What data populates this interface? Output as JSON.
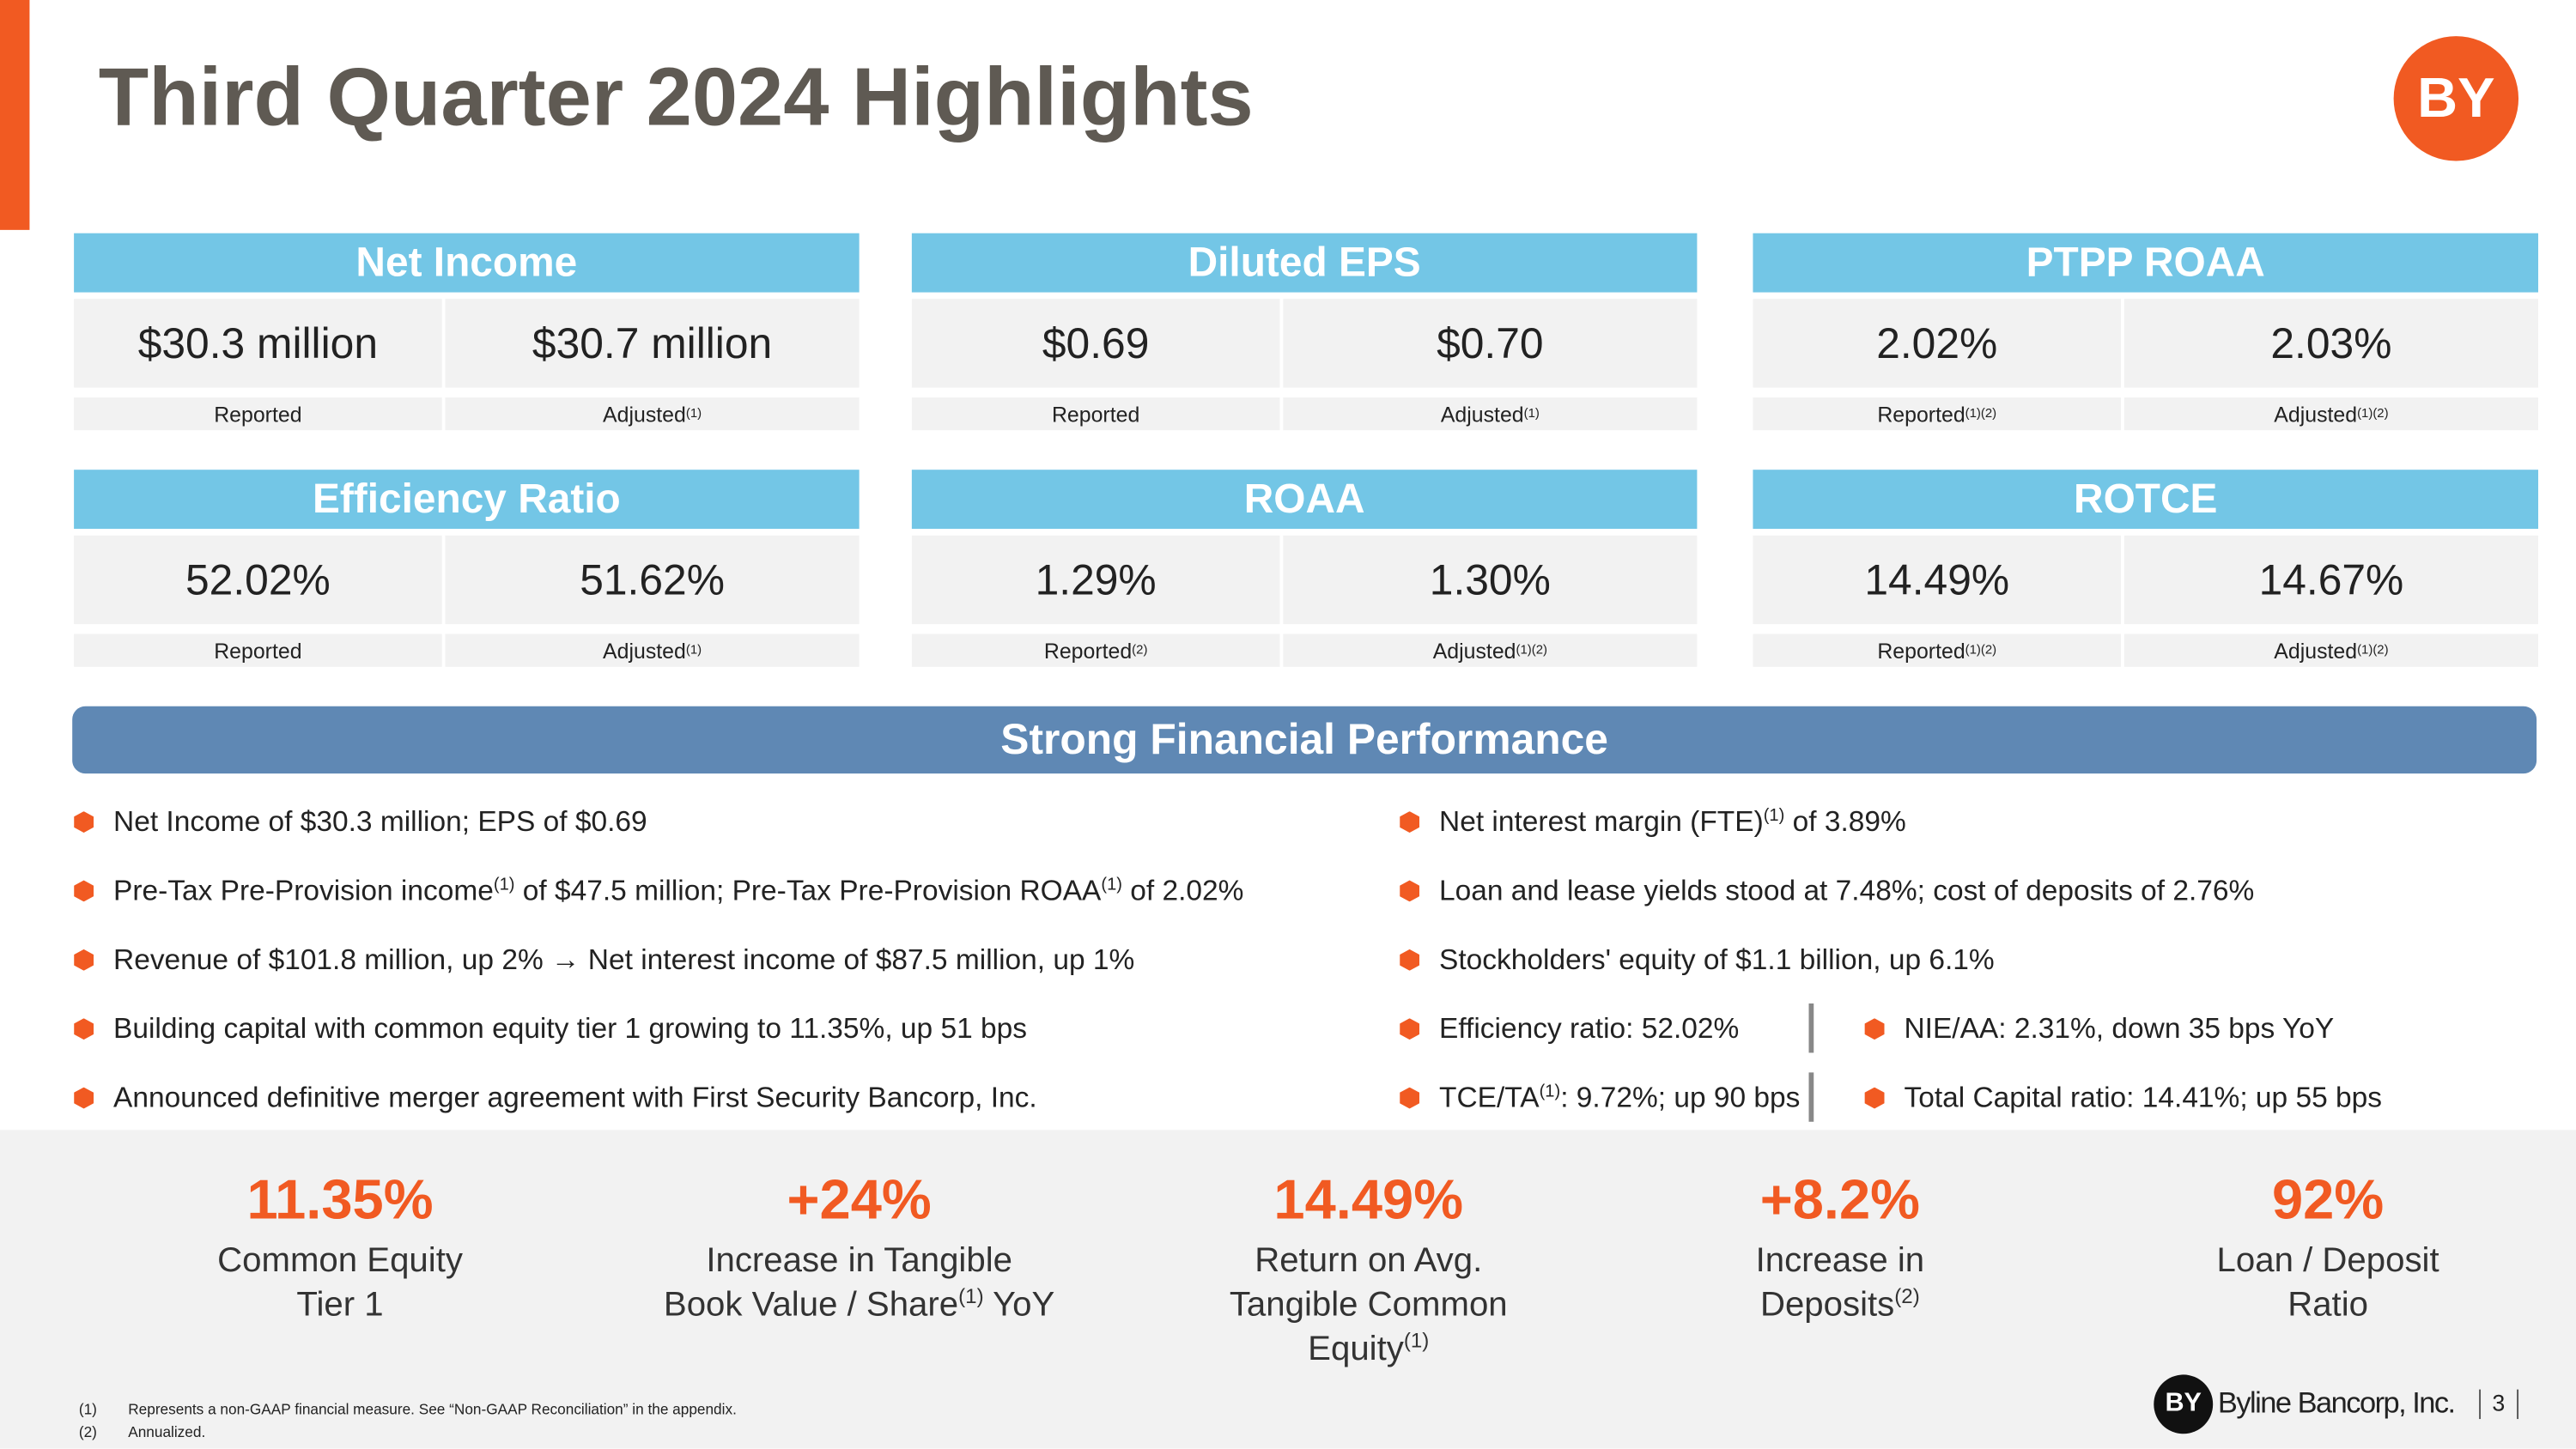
{
  "header": {
    "title": "Third Quarter 2024 Highlights",
    "logo": "BY"
  },
  "metrics": [
    {
      "title": "Net Income",
      "reported": "$30.3 million",
      "adjusted": "$30.7 million",
      "reported_label": [
        {
          "t": "Reported"
        }
      ],
      "adjusted_label": [
        {
          "t": "Adjusted"
        },
        {
          "sup": "(1)"
        }
      ]
    },
    {
      "title": "Diluted EPS",
      "reported": "$0.69",
      "adjusted": "$0.70",
      "reported_label": [
        {
          "t": "Reported"
        }
      ],
      "adjusted_label": [
        {
          "t": "Adjusted"
        },
        {
          "sup": "(1)"
        }
      ]
    },
    {
      "title": "PTPP ROAA",
      "reported": "2.02%",
      "adjusted": "2.03%",
      "reported_label": [
        {
          "t": "Reported"
        },
        {
          "sup": "(1)(2)"
        }
      ],
      "adjusted_label": [
        {
          "t": "Adjusted"
        },
        {
          "sup": "(1)(2)"
        }
      ]
    },
    {
      "title": "Efficiency Ratio",
      "reported": "52.02%",
      "adjusted": "51.62%",
      "reported_label": [
        {
          "t": "Reported"
        }
      ],
      "adjusted_label": [
        {
          "t": "Adjusted"
        },
        {
          "sup": "(1)"
        }
      ]
    },
    {
      "title": "ROAA",
      "reported": "1.29%",
      "adjusted": "1.30%",
      "reported_label": [
        {
          "t": "Reported"
        },
        {
          "sup": "(2)"
        }
      ],
      "adjusted_label": [
        {
          "t": "Adjusted"
        },
        {
          "sup": "(1)(2)"
        }
      ]
    },
    {
      "title": "ROTCE",
      "reported": "14.49%",
      "adjusted": "14.67%",
      "reported_label": [
        {
          "t": "Reported"
        },
        {
          "sup": "(1)(2)"
        }
      ],
      "adjusted_label": [
        {
          "t": "Adjusted"
        },
        {
          "sup": "(1)(2)"
        }
      ]
    }
  ],
  "banner": "Strong Financial Performance",
  "left_bullets": [
    [
      {
        "t": "Net Income of $30.3 million; EPS of $0.69"
      }
    ],
    [
      {
        "t": "Pre-Tax Pre-Provision income"
      },
      {
        "sup": "(1)"
      },
      {
        "t": " of $47.5 million; Pre-Tax Pre-Provision ROAA"
      },
      {
        "sup": "(1)"
      },
      {
        "t": " of 2.02%"
      }
    ],
    [
      {
        "t": "Revenue of $101.8 million, up 2% → Net interest income of $87.5 million, up 1%"
      }
    ],
    [
      {
        "t": "Building capital with common equity tier 1 growing to 11.35%, up 51 bps"
      }
    ],
    [
      {
        "t": "Announced definitive merger agreement with First Security Bancorp, Inc."
      }
    ]
  ],
  "right_rows": [
    [
      [
        {
          "t": "Net interest margin (FTE)"
        },
        {
          "sup": "(1)"
        },
        {
          "t": " of 3.89%"
        }
      ]
    ],
    [
      [
        {
          "t": "Loan and lease yields stood at 7.48%; cost of deposits of 2.76%"
        }
      ]
    ],
    [
      [
        {
          "t": "Stockholders' equity of $1.1 billion, up 6.1%"
        }
      ]
    ],
    [
      [
        {
          "t": "Efficiency ratio: 52.02%"
        }
      ],
      [
        {
          "t": "NIE/AA: 2.31%, down 35 bps YoY"
        }
      ]
    ],
    [
      [
        {
          "t": "TCE/TA"
        },
        {
          "sup": "(1)"
        },
        {
          "t": ": 9.72%; up 90 bps"
        }
      ],
      [
        {
          "t": "Total Capital ratio: 14.41%; up 55 bps"
        }
      ]
    ]
  ],
  "stats": [
    {
      "value": "11.35%",
      "lines": [
        [
          {
            "t": "Common Equity"
          }
        ],
        [
          {
            "t": "Tier 1"
          }
        ]
      ]
    },
    {
      "value": "+24%",
      "lines": [
        [
          {
            "t": "Increase in Tangible"
          }
        ],
        [
          {
            "t": "Book Value / Share"
          },
          {
            "sup": "(1)"
          },
          {
            "t": " YoY"
          }
        ]
      ]
    },
    {
      "value": "14.49%",
      "lines": [
        [
          {
            "t": "Return on Avg."
          }
        ],
        [
          {
            "t": "Tangible Common"
          }
        ],
        [
          {
            "t": "Equity"
          },
          {
            "sup": "(1)"
          }
        ]
      ]
    },
    {
      "value": "+8.2%",
      "lines": [
        [
          {
            "t": "Increase in"
          }
        ],
        [
          {
            "t": "Deposits"
          },
          {
            "sup": "(2)"
          }
        ]
      ]
    },
    {
      "value": "92%",
      "lines": [
        [
          {
            "t": "Loan / Deposit"
          }
        ],
        [
          {
            "t": "Ratio"
          }
        ]
      ]
    }
  ],
  "footnotes": [
    {
      "marker": "(1)",
      "text": "Represents a non-GAAP financial measure.  See “Non-GAAP Reconciliation” in the appendix."
    },
    {
      "marker": "(2)",
      "text": "Annualized."
    }
  ],
  "footer": {
    "logo": "BY",
    "company": "Byline Bancorp, Inc.",
    "page": "3"
  }
}
